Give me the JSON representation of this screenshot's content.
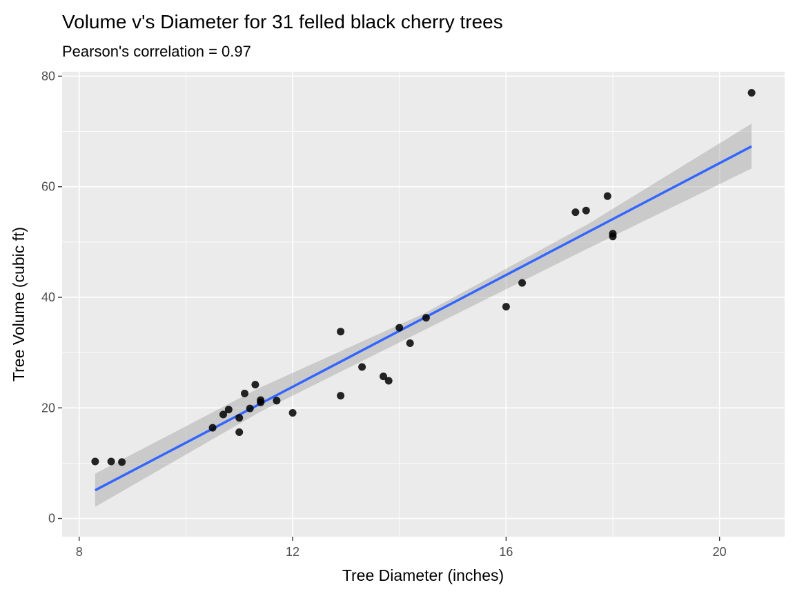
{
  "chart_data": {
    "type": "scatter",
    "title": "Volume v's Diameter for 31 felled black cherry trees",
    "subtitle": "Pearson's correlation = 0.97",
    "xlabel": "Tree Diameter (inches)",
    "ylabel": "Tree Volume (cubic ft)",
    "xlim": [
      7.68,
      21.22
    ],
    "ylim": [
      -3.3,
      80.8
    ],
    "xticks": [
      8,
      12,
      16,
      20
    ],
    "yticks": [
      0,
      20,
      40,
      60,
      80
    ],
    "grid": true,
    "legend": "none",
    "series": [
      {
        "type": "scatter",
        "color": "#000000",
        "x": [
          8.3,
          8.6,
          8.8,
          10.5,
          10.7,
          10.8,
          11.0,
          11.0,
          11.1,
          11.2,
          11.3,
          11.4,
          11.4,
          11.7,
          12.0,
          12.9,
          12.9,
          13.3,
          13.7,
          13.8,
          14.0,
          14.2,
          14.5,
          16.0,
          16.3,
          17.3,
          17.5,
          17.9,
          18.0,
          18.0,
          20.6
        ],
        "y": [
          10.3,
          10.3,
          10.2,
          16.4,
          18.8,
          19.7,
          15.6,
          18.2,
          22.6,
          19.9,
          24.2,
          21.0,
          21.4,
          21.3,
          19.1,
          22.2,
          33.8,
          27.4,
          25.7,
          24.9,
          34.5,
          31.7,
          36.3,
          38.3,
          42.6,
          55.4,
          55.7,
          58.3,
          51.5,
          51.0,
          77.0
        ]
      },
      {
        "type": "line",
        "color": "#3366ff",
        "x": [
          8.3,
          20.6
        ],
        "y": [
          5.1,
          67.3
        ]
      }
    ],
    "confidence_band": {
      "color": "#999999",
      "x": [
        8.3,
        11.375,
        14.45,
        17.525,
        20.6
      ],
      "lower": [
        2.1,
        19.2,
        34.0,
        48.8,
        63.3
      ],
      "upper": [
        8.1,
        23.6,
        37.0,
        53.2,
        71.4
      ]
    }
  }
}
